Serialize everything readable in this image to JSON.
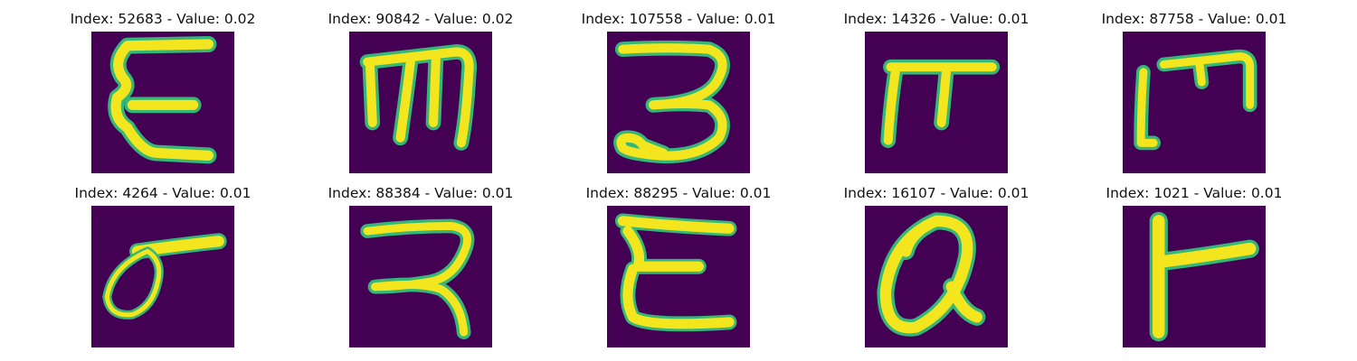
{
  "colors": {
    "background": "#440154",
    "stroke_core": "#f3e51e",
    "stroke_edge": "#35b779"
  },
  "samples": [
    {
      "title": "Index: 52683 - Value: 0.02"
    },
    {
      "title": "Index: 90842 - Value: 0.02"
    },
    {
      "title": "Index: 107558 - Value: 0.01"
    },
    {
      "title": "Index: 14326 - Value: 0.01"
    },
    {
      "title": "Index: 87758 - Value: 0.01"
    },
    {
      "title": "Index: 4264 - Value: 0.01"
    },
    {
      "title": "Index: 88384 - Value: 0.01"
    },
    {
      "title": "Index: 88295 - Value: 0.01"
    },
    {
      "title": "Index: 16107 - Value: 0.01"
    },
    {
      "title": "Index: 1021 - Value: 0.01"
    }
  ]
}
